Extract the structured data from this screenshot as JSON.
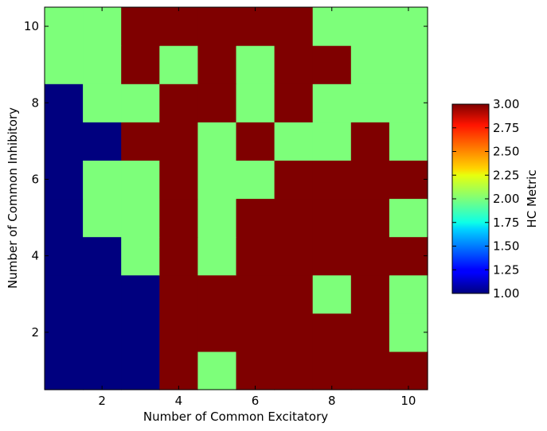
{
  "chart_data": {
    "type": "heatmap",
    "xlabel": "Number of Common Excitatory",
    "ylabel": "Number of Common Inhibitory",
    "x": [
      1,
      2,
      3,
      4,
      5,
      6,
      7,
      8,
      9,
      10
    ],
    "y": [
      1,
      2,
      3,
      4,
      5,
      6,
      7,
      8,
      9,
      10
    ],
    "xlim": [
      0.5,
      10.5
    ],
    "ylim": [
      0.5,
      10.5
    ],
    "xticks": [
      2,
      4,
      6,
      8,
      10
    ],
    "yticks": [
      2,
      4,
      6,
      8,
      10
    ],
    "values_by_row_from_y1": [
      [
        1,
        1,
        1,
        3,
        2,
        3,
        3,
        3,
        3,
        3
      ],
      [
        1,
        1,
        1,
        3,
        3,
        3,
        3,
        3,
        3,
        2
      ],
      [
        1,
        1,
        1,
        3,
        3,
        3,
        3,
        2,
        3,
        2
      ],
      [
        1,
        1,
        2,
        3,
        2,
        3,
        3,
        3,
        3,
        3
      ],
      [
        1,
        2,
        2,
        3,
        2,
        3,
        3,
        3,
        3,
        2
      ],
      [
        1,
        2,
        2,
        3,
        2,
        2,
        3,
        3,
        3,
        3
      ],
      [
        1,
        1,
        3,
        3,
        2,
        3,
        2,
        2,
        3,
        2
      ],
      [
        1,
        2,
        2,
        3,
        3,
        2,
        3,
        2,
        2,
        2
      ],
      [
        2,
        2,
        3,
        2,
        3,
        2,
        3,
        3,
        2,
        2
      ],
      [
        2,
        2,
        3,
        3,
        3,
        3,
        3,
        2,
        2,
        2
      ]
    ],
    "colorbar": {
      "label": "HC Metric",
      "colormap": "jet",
      "range": [
        1.0,
        3.0
      ],
      "ticks": [
        "1.00",
        "1.25",
        "1.50",
        "1.75",
        "2.00",
        "2.25",
        "2.50",
        "2.75",
        "3.00"
      ]
    },
    "colors": {
      "low": "#00007f",
      "mid": "#7dff7a",
      "high": "#7f0000"
    }
  }
}
